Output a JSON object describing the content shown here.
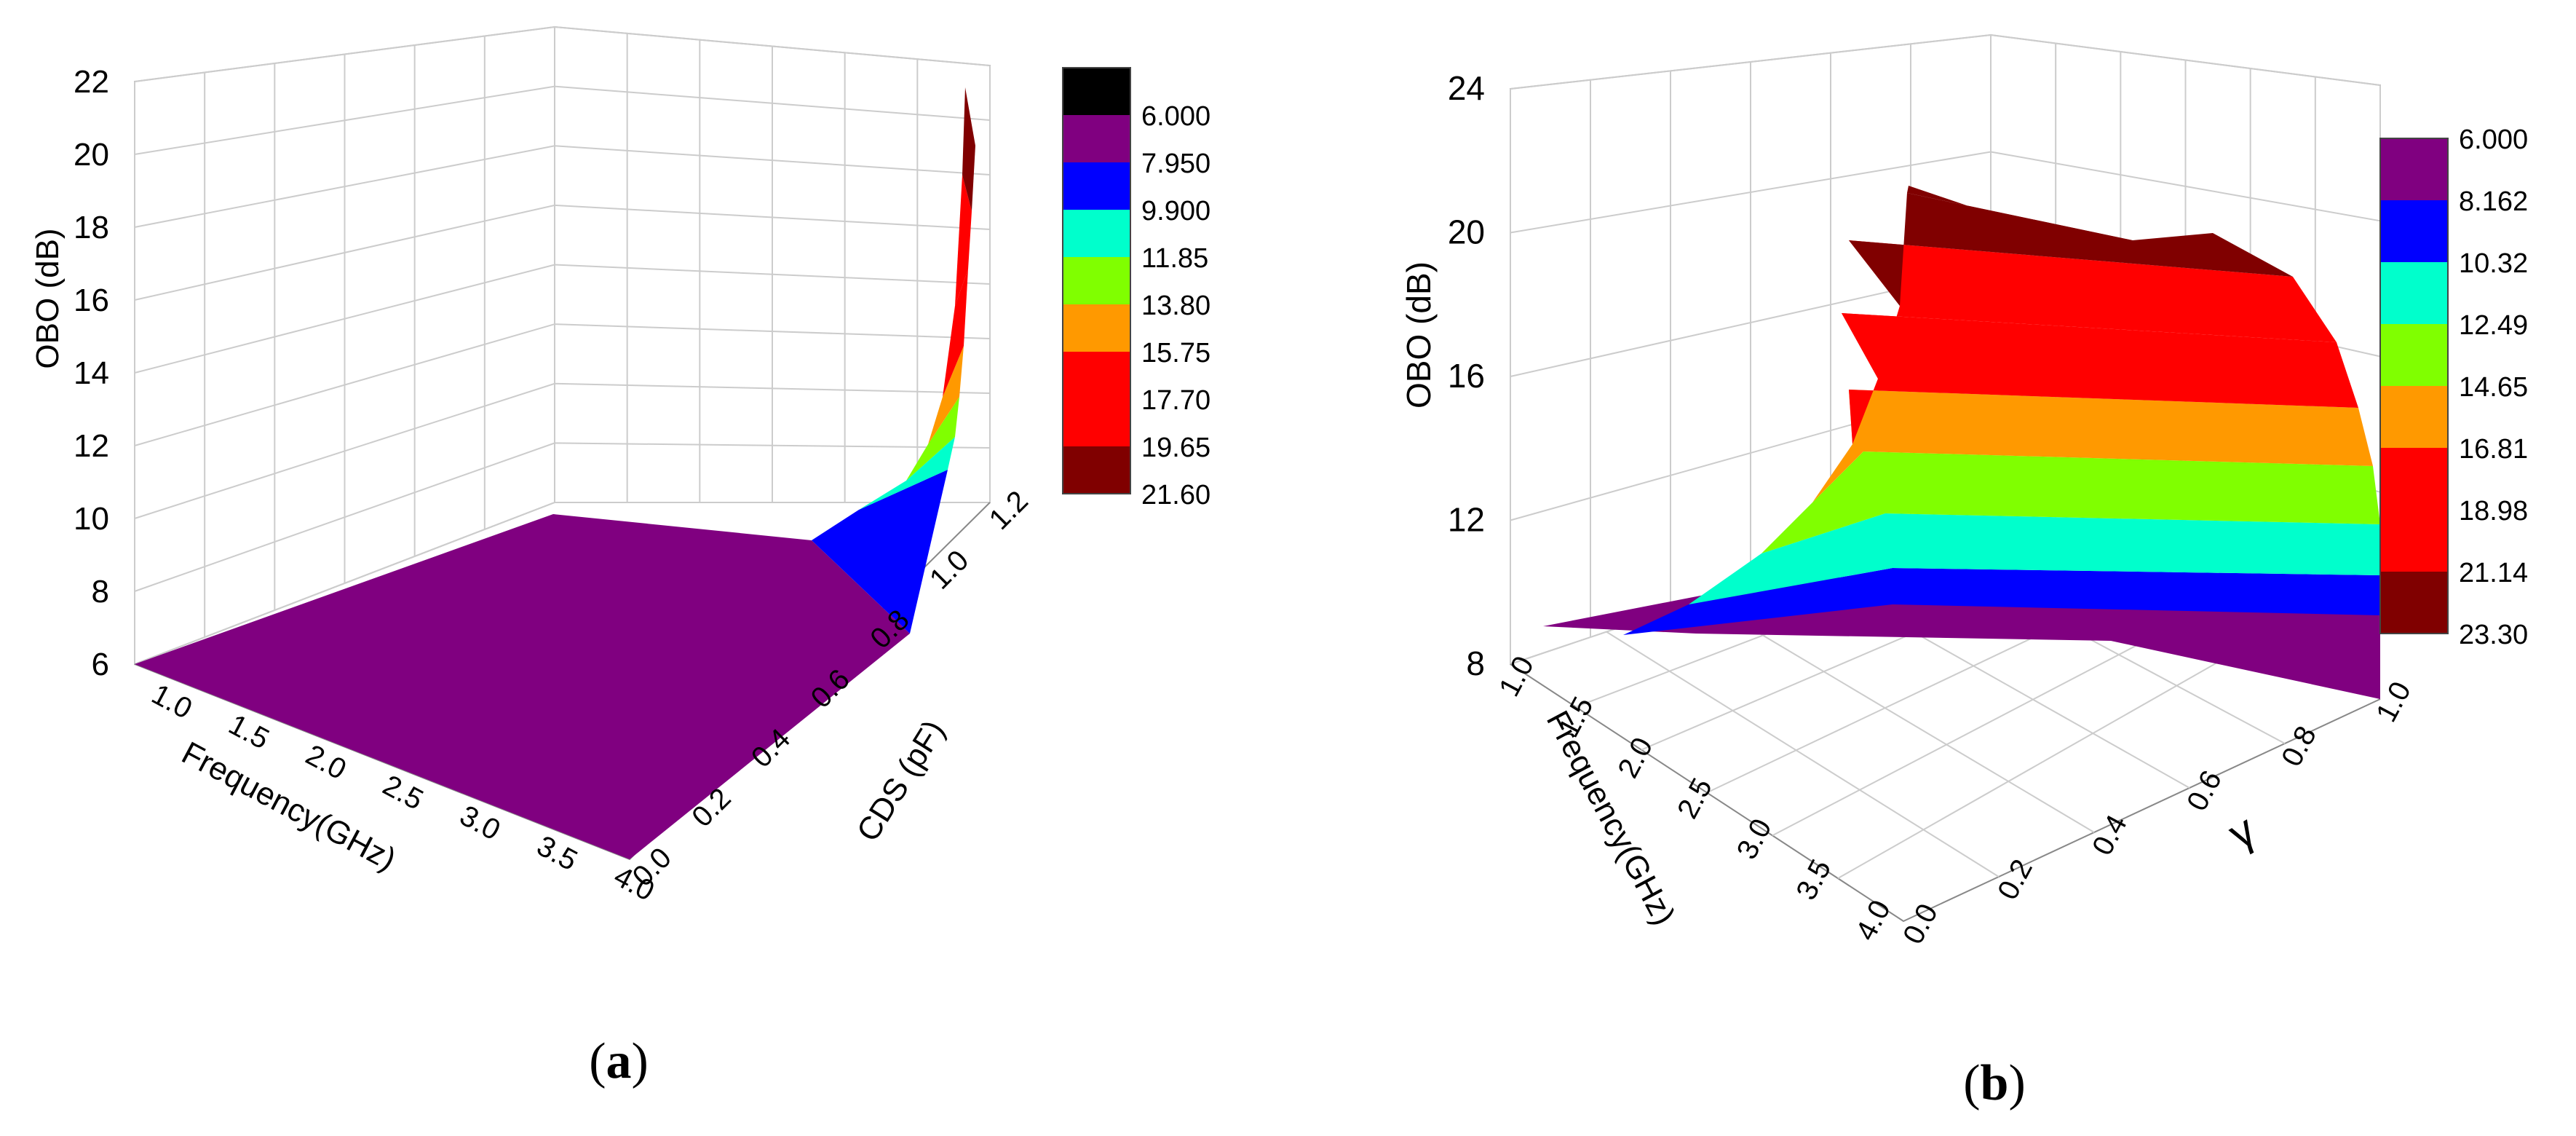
{
  "chart_data": [
    {
      "type": "surface3d",
      "panel_label": "a",
      "zlabel": "OBO (dB)",
      "xlabel": "Frequency(GHz)",
      "ylabel": "CDS (pF)",
      "z_ticks": [
        "22",
        "20",
        "18",
        "16",
        "14",
        "12",
        "10",
        "8",
        "6"
      ],
      "x_ticks": [
        "1.0",
        "1.5",
        "2.0",
        "2.5",
        "3.0",
        "3.5",
        "4.0"
      ],
      "y_ticks": [
        "0.0",
        "0.2",
        "0.4",
        "0.6",
        "0.8",
        "1.0",
        "1.2"
      ],
      "zlim": [
        6,
        22
      ],
      "xlim": [
        1.0,
        4.0
      ],
      "ylim": [
        0.0,
        1.2
      ],
      "grid": true,
      "colorbar": {
        "placement": "right",
        "levels": [
          "6.000",
          "7.950",
          "9.900",
          "11.85",
          "13.80",
          "15.75",
          "17.70",
          "19.65",
          "21.60"
        ],
        "colors": [
          "#000000",
          "#800080",
          "#0000ff",
          "#00ffcc",
          "#80ff00",
          "#ff9900",
          "#ff0000",
          "#ff0000",
          "#800000"
        ]
      },
      "surface_trend": {
        "CDS_pF": [
          0.0,
          0.2,
          0.4,
          0.6,
          0.8,
          0.9,
          1.0,
          1.05,
          1.1,
          1.15,
          1.2
        ],
        "OBO_dB": [
          6.0,
          6.0,
          6.1,
          6.3,
          7.0,
          8.0,
          9.5,
          11.5,
          14.0,
          17.5,
          21.6
        ]
      }
    },
    {
      "type": "surface3d",
      "panel_label": "b",
      "zlabel": "OBO (dB)",
      "xlabel": "Frequency(GHz)",
      "ylabel": "γ",
      "z_ticks": [
        "24",
        "20",
        "16",
        "12",
        "8"
      ],
      "x_ticks": [
        "1.0",
        "1.5",
        "2.0",
        "2.5",
        "3.0",
        "3.5",
        "4.0"
      ],
      "y_ticks": [
        "0.0",
        "0.2",
        "0.4",
        "0.6",
        "0.8",
        "1.0"
      ],
      "zlim": [
        6,
        24
      ],
      "xlim": [
        1.0,
        4.0
      ],
      "ylim": [
        0.0,
        1.0
      ],
      "grid": true,
      "colorbar": {
        "placement": "right",
        "levels": [
          "6.000",
          "8.162",
          "10.32",
          "12.49",
          "14.65",
          "16.81",
          "18.98",
          "21.14",
          "23.30"
        ],
        "colors": [
          "#800080",
          "#0000ff",
          "#00ffcc",
          "#80ff00",
          "#ff9900",
          "#ff0000",
          "#ff0000",
          "#800000"
        ]
      },
      "surface_trend": {
        "gamma": [
          0.0,
          0.2,
          0.4,
          0.6,
          0.8,
          1.0
        ],
        "OBO_dB_at_1GHz": [
          7.0,
          9.0,
          12.0,
          15.0,
          18.5,
          23.3
        ]
      }
    }
  ]
}
